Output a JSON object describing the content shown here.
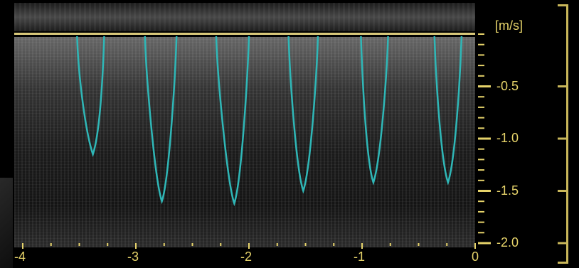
{
  "display": {
    "velocity_unit": "[m/s]",
    "velocity_ticks": [
      "-0.5",
      "-1.0",
      "-1.5",
      "-2.0"
    ],
    "time_ticks": [
      "-4",
      "-3",
      "-2",
      "-1",
      "0"
    ],
    "colors": {
      "axis": "#e6d36a",
      "baseline": "#d9c87a",
      "envelope": "#2fb7b7",
      "frame": "#c9b75a"
    }
  },
  "chart_data": {
    "type": "line",
    "xlabel": "",
    "ylabel": "[m/s]",
    "xlim": [
      -4,
      0
    ],
    "ylim": [
      -2.0,
      0.0
    ],
    "x_ticks": [
      -4,
      -3,
      -2,
      -1,
      0
    ],
    "y_ticks": [
      -0.5,
      -1.0,
      -1.5,
      -2.0
    ],
    "grid": false,
    "series": [
      {
        "values": [
          {
            "start": -3.52,
            "peak_time": -3.38,
            "end": -3.28,
            "peak_velocity": -1.15
          },
          {
            "start": -2.92,
            "peak_time": -2.77,
            "end": -2.64,
            "peak_velocity": -1.6
          },
          {
            "start": -2.29,
            "peak_time": -2.13,
            "end": -2.0,
            "peak_velocity": -1.62
          },
          {
            "start": -1.65,
            "peak_time": -1.52,
            "end": -1.39,
            "peak_velocity": -1.5
          },
          {
            "start": -1.01,
            "peak_time": -0.9,
            "end": -0.77,
            "peak_velocity": -1.42
          },
          {
            "start": -0.36,
            "peak_time": -0.24,
            "end": -0.12,
            "peak_velocity": -1.42
          }
        ]
      }
    ]
  }
}
